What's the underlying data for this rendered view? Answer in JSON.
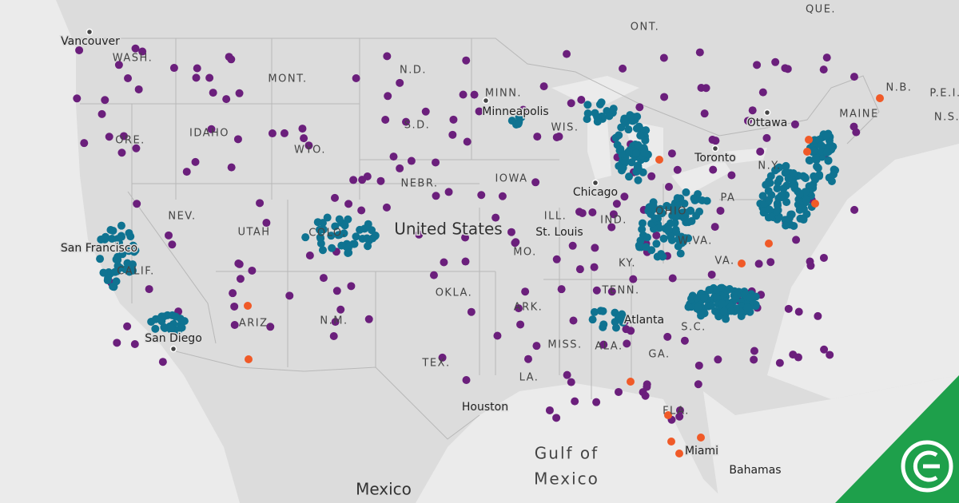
{
  "map": {
    "countries": [
      "United States",
      "Mexico"
    ],
    "provinces": [
      "ONT.",
      "QUE.",
      "N.B.",
      "P.E.I.",
      "N.S."
    ],
    "states": [
      "WASH.",
      "MONT.",
      "N.D.",
      "MINN.",
      "WIS.",
      "MAINE",
      "IDAHO",
      "ORE.",
      "WYO.",
      "S.D.",
      "IOWA",
      "NEBR.",
      "N.Y.",
      "PA",
      "NEV.",
      "UTAH",
      "ILL.",
      "IND.",
      "OHIO",
      "COLO.",
      "W.VA.",
      "CALIF.",
      "MO.",
      "KY.",
      "VA.",
      "OKLA.",
      "TENN.",
      "ARK.",
      "ARIZ.",
      "N.M.",
      "S.C.",
      "MISS.",
      "ALA.",
      "GA.",
      "TEX.",
      "LA.",
      "FLA."
    ],
    "cities": [
      "Vancouver",
      "Minneapolis",
      "Ottawa",
      "Toronto",
      "Chicago",
      "St. Louis",
      "San Francisco",
      "Atlanta",
      "San Diego",
      "Houston",
      "Miami"
    ],
    "water_labels": [
      "Gulf of",
      "Mexico"
    ],
    "islands": [
      "Bahamas"
    ]
  }
}
